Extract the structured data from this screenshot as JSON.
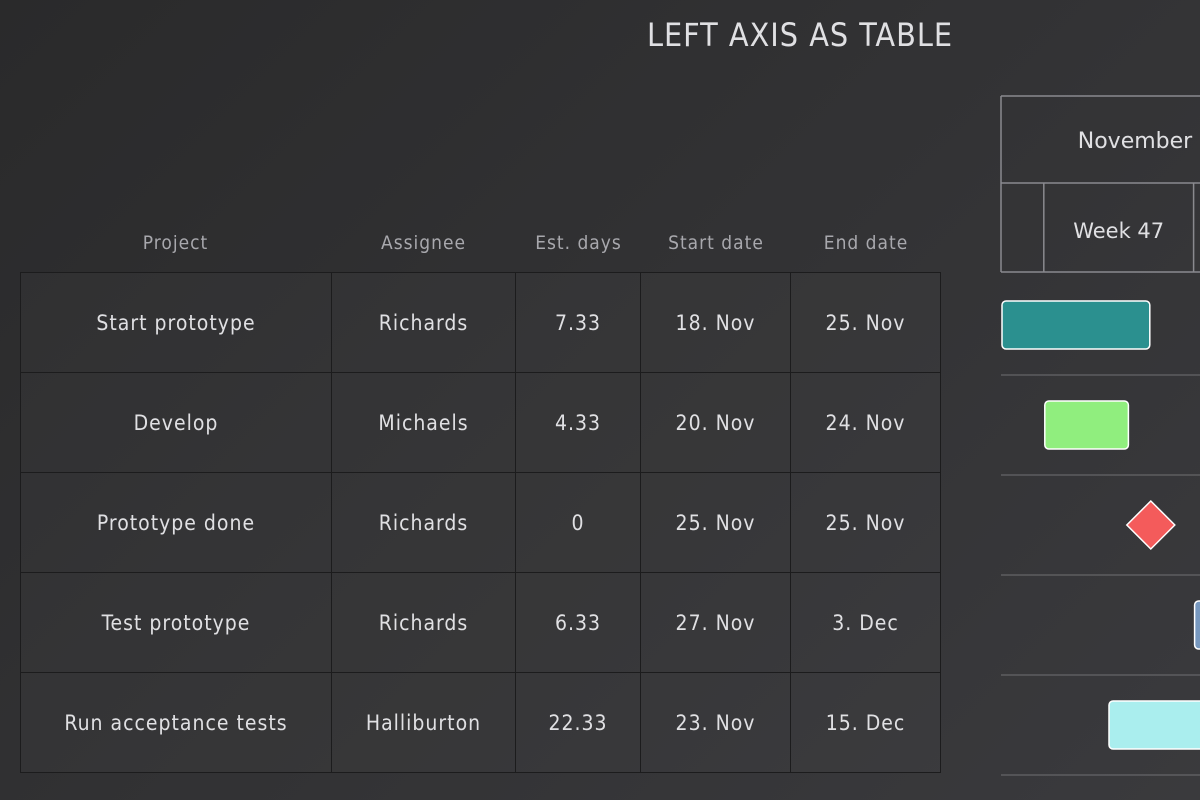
{
  "chart_data": {
    "type": "gantt",
    "title": "LEFT AXIS AS TABLE",
    "columns": [
      "Project",
      "Assignee",
      "Est. days",
      "Start date",
      "End date"
    ],
    "rows": [
      {
        "project": "Start prototype",
        "assignee": "Richards",
        "est_days": "7.33",
        "start": "18. Nov",
        "end": "25. Nov",
        "color": "#2b908f",
        "milestone": false,
        "start_day": "2017-11-18",
        "end_day": "2017-11-25"
      },
      {
        "project": "Develop",
        "assignee": "Michaels",
        "est_days": "4.33",
        "start": "20. Nov",
        "end": "24. Nov",
        "color": "#90ee7e",
        "milestone": false,
        "start_day": "2017-11-20",
        "end_day": "2017-11-24"
      },
      {
        "project": "Prototype done",
        "assignee": "Richards",
        "est_days": "0",
        "start": "25. Nov",
        "end": "25. Nov",
        "color": "#f45b5b",
        "milestone": true,
        "start_day": "2017-11-25",
        "end_day": "2017-11-25"
      },
      {
        "project": "Test prototype",
        "assignee": "Richards",
        "est_days": "6.33",
        "start": "27. Nov",
        "end": "3. Dec",
        "color": "#7798bf",
        "milestone": false,
        "start_day": "2017-11-27",
        "end_day": "2017-12-03"
      },
      {
        "project": "Run acceptance tests",
        "assignee": "Halliburton",
        "est_days": "22.33",
        "start": "23. Nov",
        "end": "15. Dec",
        "color": "#aaeeee",
        "milestone": false,
        "start_day": "2017-11-23",
        "end_day": "2017-12-15"
      }
    ],
    "x_axis": {
      "months": [
        {
          "label": "November",
          "start": "2017-11-01",
          "end": "2017-12-01"
        }
      ],
      "weeks": [
        {
          "label": "",
          "start": "2017-11-18",
          "end": "2017-11-20"
        },
        {
          "label": "Week 47",
          "start": "2017-11-20",
          "end": "2017-11-27"
        },
        {
          "label": "",
          "start": "2017-11-27",
          "end": "2017-12-04"
        }
      ]
    },
    "grid": true,
    "legend": "none"
  }
}
